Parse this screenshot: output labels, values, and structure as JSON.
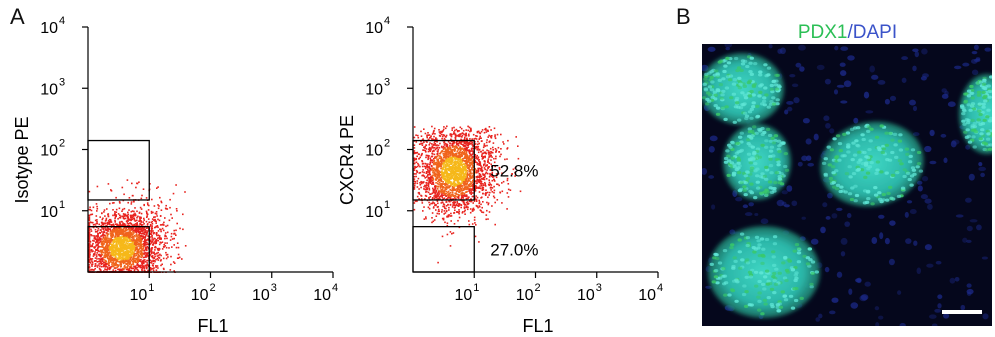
{
  "figure": {
    "panel_a_label": "A",
    "panel_b_label": "B",
    "micrograph_title": {
      "marker1": "PDX1",
      "separator": "/",
      "marker2": "DAPI"
    },
    "colors": {
      "pdx1": "#2bbf55",
      "dapi": "#3b53c9",
      "dots": "#e8231e",
      "dense": "#f6b81a"
    }
  },
  "chart_data": [
    {
      "type": "scatter",
      "xlabel": "FL1",
      "ylabel": "Isotype PE",
      "xscale": "log",
      "yscale": "log",
      "xlim": [
        1,
        10000
      ],
      "ylim": [
        1,
        10000
      ],
      "x_ticks": [
        "10",
        "10",
        "10",
        "10"
      ],
      "x_tick_exponents": [
        "1",
        "2",
        "3",
        "4"
      ],
      "y_ticks": [
        "10",
        "10",
        "10",
        "10"
      ],
      "y_tick_exponents": [
        "1",
        "2",
        "3",
        "4"
      ],
      "gates": [
        {
          "x": [
            1,
            10
          ],
          "y": [
            15,
            140
          ],
          "label": ""
        },
        {
          "x": [
            1,
            10
          ],
          "y": [
            1,
            5.5
          ],
          "label": ""
        }
      ],
      "population": {
        "center": [
          3.5,
          2.5
        ],
        "spread_log": [
          0.3,
          0.28
        ],
        "extends_to": [
          40,
          40
        ]
      }
    },
    {
      "type": "scatter",
      "xlabel": "FL1",
      "ylabel": "CXCR4 PE",
      "xscale": "log",
      "yscale": "log",
      "xlim": [
        1,
        10000
      ],
      "ylim": [
        1,
        10000
      ],
      "x_ticks": [
        "10",
        "10",
        "10",
        "10"
      ],
      "x_tick_exponents": [
        "1",
        "2",
        "3",
        "4"
      ],
      "y_ticks": [
        "10",
        "10",
        "10",
        "10"
      ],
      "y_tick_exponents": [
        "1",
        "2",
        "3",
        "4"
      ],
      "gates": [
        {
          "x": [
            1,
            10
          ],
          "y": [
            15,
            140
          ],
          "label": "52.8%"
        },
        {
          "x": [
            1,
            10
          ],
          "y": [
            1,
            5.5
          ],
          "label": "27.0%"
        }
      ],
      "population": {
        "center": [
          4.5,
          45
        ],
        "spread_log": [
          0.3,
          0.35
        ],
        "extends_to": [
          60,
          250
        ]
      }
    }
  ]
}
